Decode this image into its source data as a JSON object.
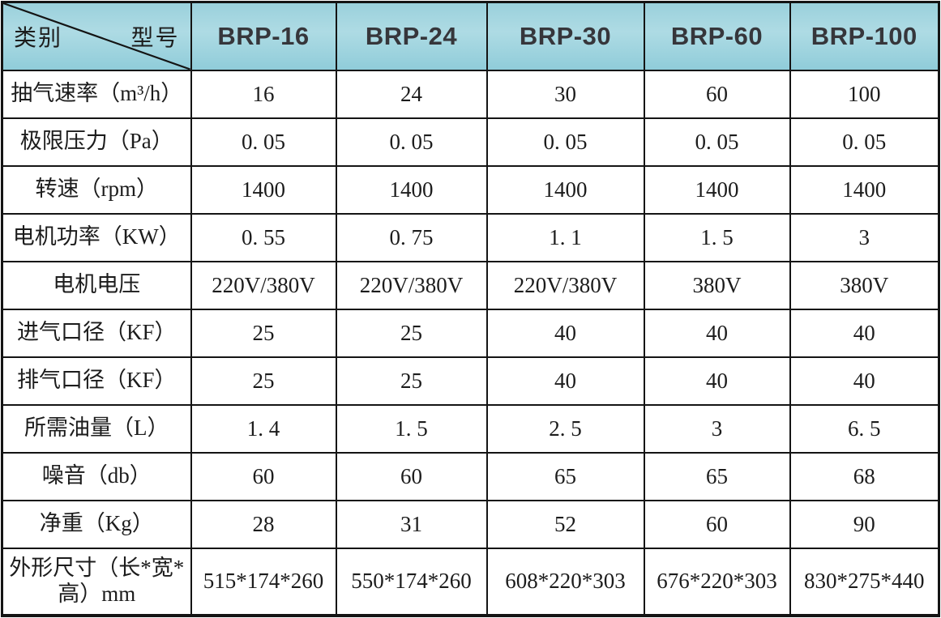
{
  "table": {
    "corner": {
      "bottom_left_label": "类别",
      "top_right_label": "型号"
    },
    "columns": [
      "BRP-16",
      "BRP-24",
      "BRP-30",
      "BRP-60",
      "BRP-100"
    ],
    "rows": [
      {
        "label": "抽气速率（m³/h）",
        "values": [
          "16",
          "24",
          "30",
          "60",
          "100"
        ]
      },
      {
        "label": "极限压力（Pa）",
        "values": [
          "0. 05",
          "0. 05",
          "0. 05",
          "0. 05",
          "0. 05"
        ]
      },
      {
        "label": "转速（rpm）",
        "values": [
          "1400",
          "1400",
          "1400",
          "1400",
          "1400"
        ]
      },
      {
        "label": "电机功率（KW）",
        "values": [
          "0. 55",
          "0. 75",
          "1. 1",
          "1. 5",
          "3"
        ]
      },
      {
        "label": "电机电压",
        "values": [
          "220V/380V",
          "220V/380V",
          "220V/380V",
          "380V",
          "380V"
        ]
      },
      {
        "label": "进气口径（KF）",
        "values": [
          "25",
          "25",
          "40",
          "40",
          "40"
        ]
      },
      {
        "label": "排气口径（KF）",
        "values": [
          "25",
          "25",
          "40",
          "40",
          "40"
        ]
      },
      {
        "label": "所需油量（L）",
        "values": [
          "1. 4",
          "1. 5",
          "2. 5",
          "3",
          "6. 5"
        ]
      },
      {
        "label": "噪音（db）",
        "values": [
          "60",
          "60",
          "65",
          "65",
          "68"
        ]
      },
      {
        "label": "净重（Kg）",
        "values": [
          "28",
          "31",
          "52",
          "60",
          "90"
        ]
      },
      {
        "label": "外形尺寸（长*宽*高）mm",
        "values": [
          "515*174*260",
          "550*174*260",
          "608*220*303",
          "676*220*303",
          "830*275*440"
        ]
      }
    ],
    "colors": {
      "header_bg": "#9ed3de",
      "border": "#141414",
      "text": "#1c1c1c",
      "header_text": "#36363b"
    }
  }
}
